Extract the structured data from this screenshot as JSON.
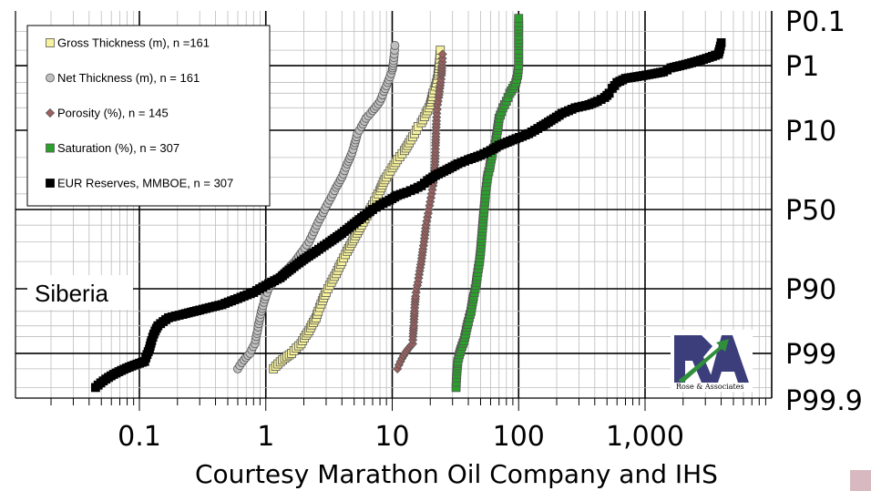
{
  "chart_data": {
    "type": "scatter",
    "x_scale": "log",
    "xlim": [
      0.01,
      5000
    ],
    "y_scale": "probability",
    "y_tick_labels": [
      "P0.1",
      "P1",
      "P10",
      "P50",
      "P90",
      "P99",
      "P99.9"
    ],
    "x_tick_labels": [
      "0.1",
      "1",
      "10",
      "100",
      "1,000"
    ],
    "grid": true,
    "legend_position": "top-left",
    "annotation": "Siberia",
    "credit": "Courtesy Marathon Oil Company and IHS",
    "logo_text": "Rose & Associates",
    "series": [
      {
        "name": "Gross Thickness (m), n =161",
        "marker": "square",
        "color": "#f7f39c",
        "points": [
          [
            1.15,
            99.5
          ],
          [
            1.6,
            99
          ],
          [
            1.9,
            98.5
          ],
          [
            2.2,
            97.5
          ],
          [
            2.5,
            96
          ],
          [
            2.6,
            95
          ],
          [
            2.8,
            93
          ],
          [
            3.0,
            91
          ],
          [
            3.3,
            88
          ],
          [
            3.6,
            85
          ],
          [
            4.0,
            80
          ],
          [
            4.4,
            75
          ],
          [
            5.0,
            68
          ],
          [
            5.7,
            60
          ],
          [
            6.5,
            52
          ],
          [
            7.0,
            47
          ],
          [
            7.5,
            42
          ],
          [
            8.0,
            38
          ],
          [
            8.5,
            33
          ],
          [
            9.0,
            30
          ],
          [
            10,
            25
          ],
          [
            11,
            21
          ],
          [
            12.5,
            17
          ],
          [
            14,
            13
          ],
          [
            15,
            11
          ],
          [
            16,
            9
          ],
          [
            17,
            8
          ],
          [
            18.5,
            6
          ],
          [
            20,
            4.5
          ],
          [
            21,
            3
          ],
          [
            22,
            2.3
          ],
          [
            23,
            1.5
          ],
          [
            24,
            0.5
          ]
        ]
      },
      {
        "name": "Net Thickness (m), n = 161",
        "marker": "circle",
        "color": "#c0c0c0",
        "points": [
          [
            0.6,
            99.5
          ],
          [
            0.75,
            99
          ],
          [
            0.82,
            98.5
          ],
          [
            0.86,
            97.5
          ],
          [
            0.9,
            96
          ],
          [
            0.95,
            94
          ],
          [
            1.0,
            92
          ],
          [
            1.05,
            90
          ],
          [
            1.15,
            88
          ],
          [
            1.3,
            86
          ],
          [
            1.5,
            83
          ],
          [
            1.7,
            80
          ],
          [
            1.95,
            75
          ],
          [
            2.2,
            70
          ],
          [
            2.4,
            64
          ],
          [
            2.6,
            58
          ],
          [
            2.85,
            52
          ],
          [
            3.0,
            48
          ],
          [
            3.3,
            42
          ],
          [
            3.6,
            36
          ],
          [
            4.0,
            30
          ],
          [
            4.4,
            23
          ],
          [
            4.8,
            18
          ],
          [
            5.0,
            15
          ],
          [
            5.3,
            11
          ],
          [
            5.7,
            9
          ],
          [
            6.2,
            7
          ],
          [
            7.0,
            5.5
          ],
          [
            8.0,
            4
          ],
          [
            8.6,
            2.8
          ],
          [
            9.2,
            2
          ],
          [
            10,
            1.2
          ],
          [
            10.5,
            0.4
          ]
        ]
      },
      {
        "name": "Porosity (%), n = 145",
        "marker": "diamond",
        "color": "#a06060",
        "points": [
          [
            11,
            99.5
          ],
          [
            14.5,
            98.5
          ],
          [
            14.8,
            97
          ],
          [
            15,
            95
          ],
          [
            15.3,
            92
          ],
          [
            15.6,
            90
          ],
          [
            16,
            88
          ],
          [
            16.5,
            84
          ],
          [
            17,
            80
          ],
          [
            17.5,
            74
          ],
          [
            18,
            68
          ],
          [
            18.5,
            60
          ],
          [
            19,
            55
          ],
          [
            19.5,
            50
          ],
          [
            20,
            45
          ],
          [
            20.5,
            40
          ],
          [
            21,
            35
          ],
          [
            21.5,
            28
          ],
          [
            21.8,
            22
          ],
          [
            22,
            15
          ],
          [
            22.2,
            10
          ],
          [
            22.5,
            6
          ],
          [
            22.8,
            4.5
          ],
          [
            23.3,
            3.5
          ],
          [
            23.8,
            2.5
          ],
          [
            24.5,
            1.5
          ],
          [
            25,
            0.6
          ]
        ]
      },
      {
        "name": "Saturation (%), n = 307",
        "marker": "square",
        "color": "#2aa12a",
        "points": [
          [
            32,
            99.8
          ],
          [
            33,
            99.3
          ],
          [
            35,
            98.8
          ],
          [
            37,
            98.3
          ],
          [
            38,
            97.8
          ],
          [
            40,
            96.5
          ],
          [
            42,
            95
          ],
          [
            44,
            92
          ],
          [
            46,
            89
          ],
          [
            47,
            86
          ],
          [
            48,
            83
          ],
          [
            49,
            80
          ],
          [
            50,
            75
          ],
          [
            51,
            68
          ],
          [
            52,
            60
          ],
          [
            53,
            52
          ],
          [
            54,
            45
          ],
          [
            55,
            38
          ],
          [
            56,
            33
          ],
          [
            57,
            29
          ],
          [
            59,
            25
          ],
          [
            60,
            22
          ],
          [
            62,
            18
          ],
          [
            64,
            16
          ],
          [
            66,
            13
          ],
          [
            68,
            10
          ],
          [
            70,
            7
          ],
          [
            75,
            5
          ],
          [
            80,
            4
          ],
          [
            85,
            3
          ],
          [
            95,
            2
          ],
          [
            98,
            1.5
          ],
          [
            100,
            1
          ],
          [
            100,
            0.8
          ],
          [
            100,
            0.6
          ],
          [
            100,
            0.4
          ],
          [
            100,
            0.2
          ],
          [
            100,
            0.1
          ]
        ]
      },
      {
        "name": "EUR Reserves, MMBOE, n = 307",
        "marker": "square",
        "color": "#000000",
        "points": [
          [
            0.045,
            99.8
          ],
          [
            0.11,
            99.3
          ],
          [
            0.12,
            98.8
          ],
          [
            0.125,
            98.3
          ],
          [
            0.13,
            97.8
          ],
          [
            0.14,
            97.0
          ],
          [
            0.17,
            96.0
          ],
          [
            0.22,
            95.5
          ],
          [
            0.3,
            94.8
          ],
          [
            0.45,
            93.8
          ],
          [
            0.6,
            92.5
          ],
          [
            0.8,
            91
          ],
          [
            1.0,
            89
          ],
          [
            1.3,
            86.5
          ],
          [
            1.6,
            83
          ],
          [
            2.0,
            79
          ],
          [
            2.5,
            75
          ],
          [
            3.2,
            70
          ],
          [
            4.0,
            65
          ],
          [
            5.0,
            59
          ],
          [
            6.0,
            54
          ],
          [
            7.0,
            50
          ],
          [
            8.0,
            47
          ],
          [
            9.5,
            44
          ],
          [
            11,
            41
          ],
          [
            13,
            39
          ],
          [
            15,
            37
          ],
          [
            17,
            35
          ],
          [
            19,
            32
          ],
          [
            22,
            29
          ],
          [
            27,
            26
          ],
          [
            33,
            23
          ],
          [
            40,
            21
          ],
          [
            50,
            19
          ],
          [
            60,
            17
          ],
          [
            70,
            15
          ],
          [
            90,
            13
          ],
          [
            120,
            11
          ],
          [
            150,
            9
          ],
          [
            180,
            7.5
          ],
          [
            220,
            6
          ],
          [
            280,
            5
          ],
          [
            360,
            4.5
          ],
          [
            420,
            4
          ],
          [
            480,
            3.5
          ],
          [
            520,
            3
          ],
          [
            550,
            2.5
          ],
          [
            600,
            2
          ],
          [
            700,
            1.7
          ],
          [
            1400,
            1.3
          ],
          [
            1600,
            1.1
          ],
          [
            3800,
            0.6
          ],
          [
            4000,
            0.35
          ]
        ]
      }
    ]
  }
}
